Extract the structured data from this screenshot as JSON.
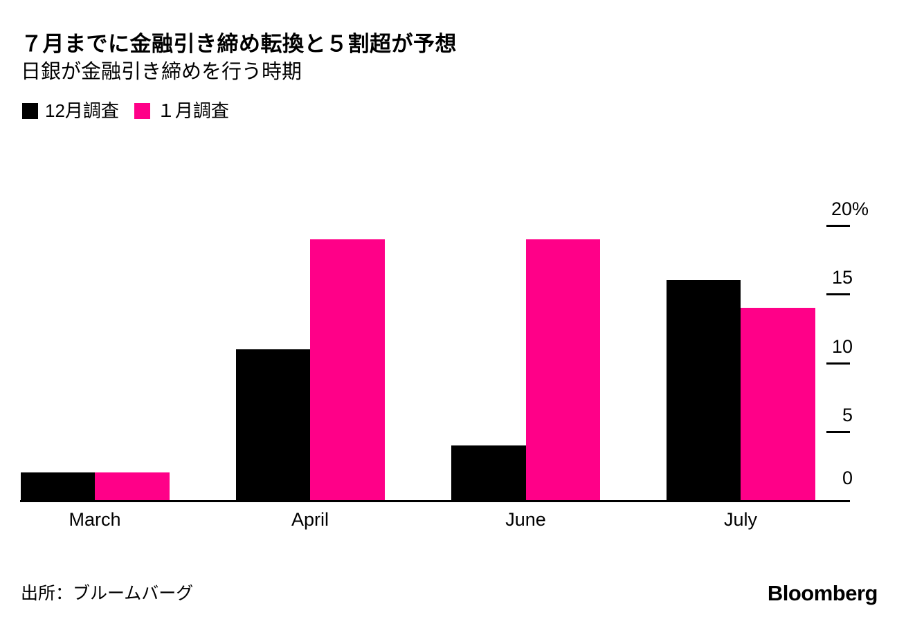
{
  "header": {
    "title": "７月までに金融引き締め転換と５割超が予想",
    "subtitle": "日銀が金融引き締めを行う時期"
  },
  "chart_data": {
    "type": "bar",
    "categories": [
      "March",
      "April",
      "June",
      "July"
    ],
    "series": [
      {
        "name": "12月調査",
        "color": "#000000",
        "values": [
          2,
          11,
          4,
          16
        ]
      },
      {
        "name": "１月調査",
        "color": "#ff0088",
        "values": [
          2,
          19,
          19,
          14
        ]
      }
    ],
    "title": "７月までに金融引き締め転換と５割超が予想",
    "xlabel": "",
    "ylabel": "%",
    "ylim": [
      0,
      20
    ],
    "yticks": [
      {
        "value": 20,
        "label": "20%"
      },
      {
        "value": 15,
        "label": "15"
      },
      {
        "value": 10,
        "label": "10"
      },
      {
        "value": 5,
        "label": "5"
      },
      {
        "value": 0,
        "label": "0"
      }
    ],
    "grid": false,
    "legend_position": "top-left",
    "value_axis_side": "right"
  },
  "footer": {
    "source": "出所：ブルームバーグ",
    "logo": "Bloomberg"
  }
}
